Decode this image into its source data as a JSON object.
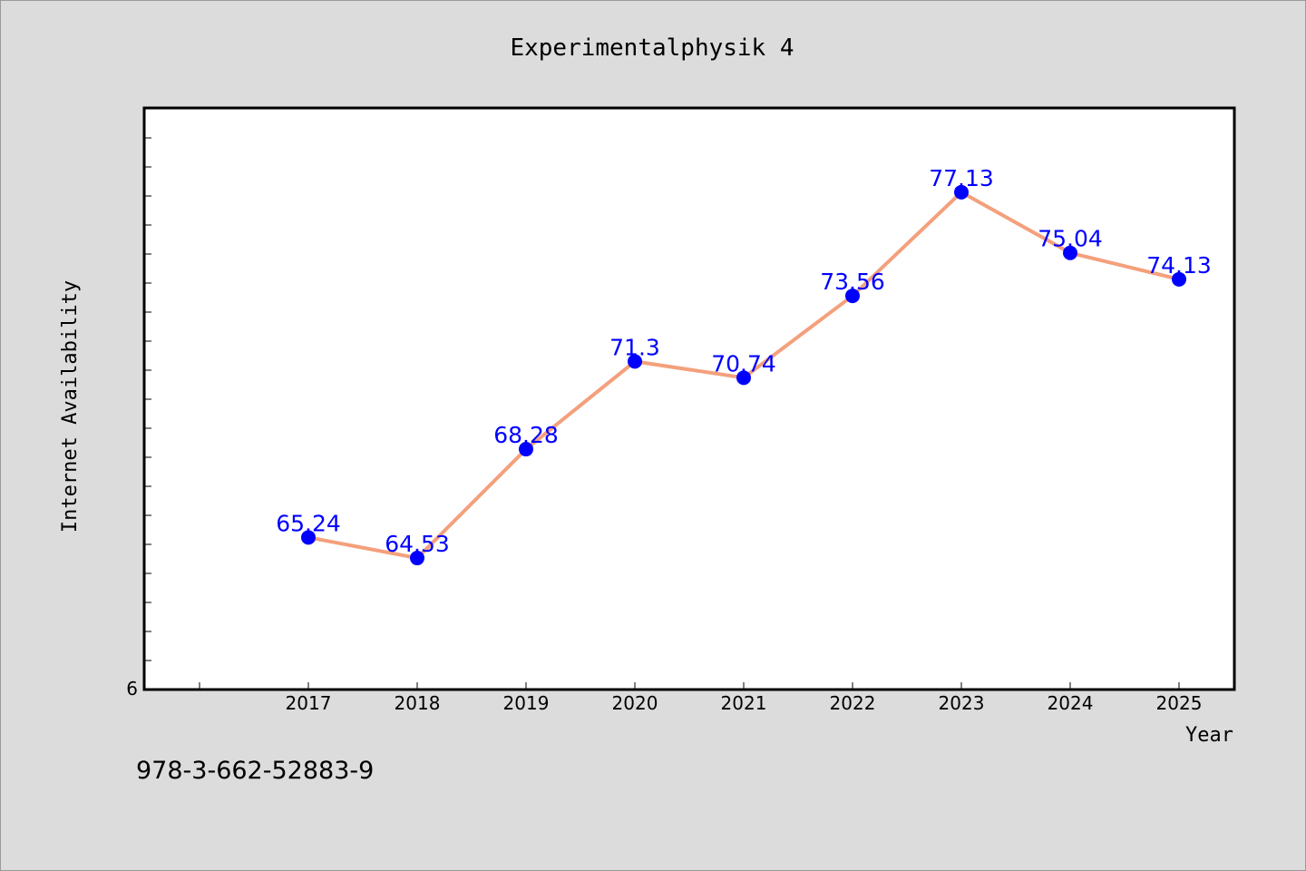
{
  "chart_data": {
    "type": "line",
    "title": "Experimentalphysik 4",
    "xlabel": "Year",
    "ylabel": "Internet Availability",
    "categories": [
      "2017",
      "2018",
      "2019",
      "2020",
      "2021",
      "2022",
      "2023",
      "2024",
      "2025"
    ],
    "series": [
      {
        "values": [
          65.24,
          64.53,
          68.28,
          71.3,
          70.74,
          73.56,
          77.13,
          75.04,
          74.13
        ],
        "data_labels": [
          "65.24",
          "64.53",
          "68.28",
          "71.3",
          "70.74",
          "73.56",
          "77.13",
          "75.04",
          "74.13"
        ],
        "line_color": "#f4a07c",
        "marker_color": "#0000ff"
      }
    ],
    "ylim": [
      60,
      80
    ],
    "y_tick_label": "6",
    "grid": false,
    "legend": "none"
  },
  "footer": {
    "isbn": "978-3-662-52883-9"
  },
  "colors": {
    "background": "#dcdcdc",
    "plot_background": "#ffffff",
    "label_color": "#0000ff"
  }
}
